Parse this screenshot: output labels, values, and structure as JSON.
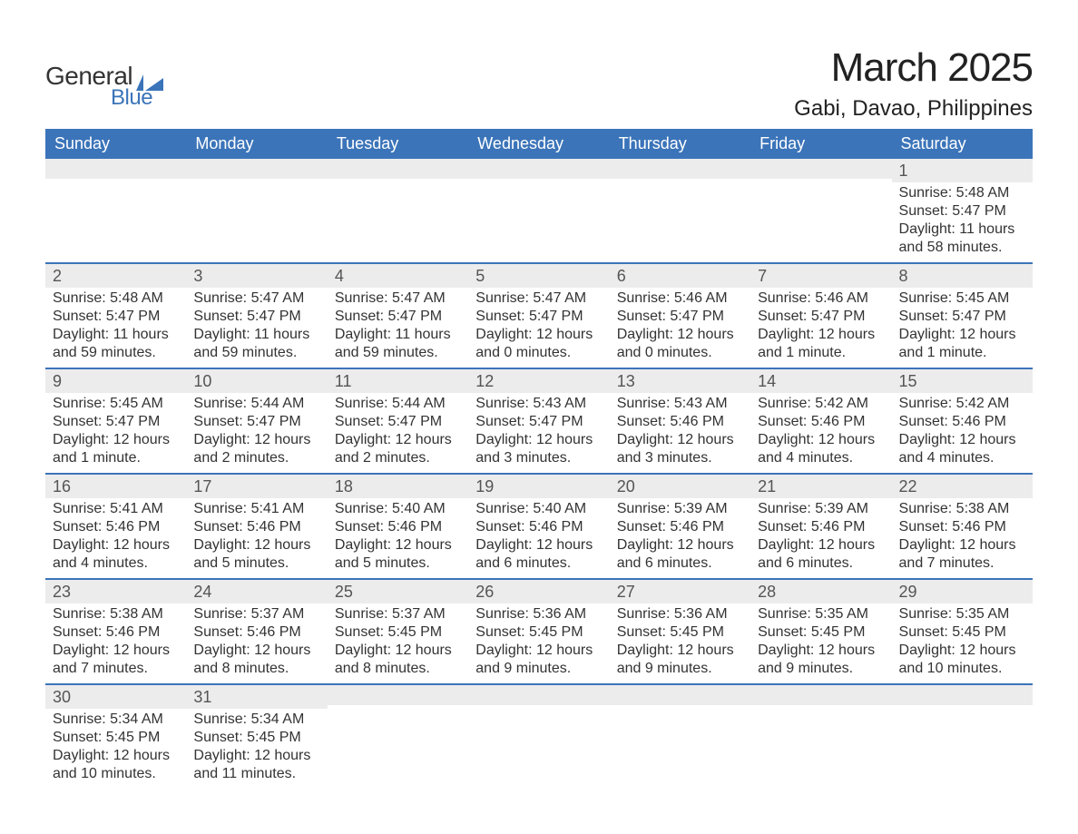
{
  "logo": {
    "text_general": "General",
    "text_blue": "Blue",
    "flag_color": "#3b74b9"
  },
  "title": {
    "month": "March 2025",
    "location": "Gabi, Davao, Philippines"
  },
  "colors": {
    "header_bg": "#3b74b9",
    "header_text": "#ffffff",
    "daynum_bg": "#ececec",
    "daynum_text": "#555555",
    "body_text": "#333333",
    "row_border": "#3b74b9",
    "page_bg": "#ffffff"
  },
  "typography": {
    "month_title_fontsize": 44,
    "location_fontsize": 24,
    "weekday_fontsize": 18,
    "daynum_fontsize": 18,
    "body_fontsize": 16,
    "font_family": "Arial"
  },
  "weekdays": [
    "Sunday",
    "Monday",
    "Tuesday",
    "Wednesday",
    "Thursday",
    "Friday",
    "Saturday"
  ],
  "weeks": [
    [
      null,
      null,
      null,
      null,
      null,
      null,
      {
        "day": "1",
        "sunrise": "Sunrise: 5:48 AM",
        "sunset": "Sunset: 5:47 PM",
        "daylight1": "Daylight: 11 hours",
        "daylight2": "and 58 minutes."
      }
    ],
    [
      {
        "day": "2",
        "sunrise": "Sunrise: 5:48 AM",
        "sunset": "Sunset: 5:47 PM",
        "daylight1": "Daylight: 11 hours",
        "daylight2": "and 59 minutes."
      },
      {
        "day": "3",
        "sunrise": "Sunrise: 5:47 AM",
        "sunset": "Sunset: 5:47 PM",
        "daylight1": "Daylight: 11 hours",
        "daylight2": "and 59 minutes."
      },
      {
        "day": "4",
        "sunrise": "Sunrise: 5:47 AM",
        "sunset": "Sunset: 5:47 PM",
        "daylight1": "Daylight: 11 hours",
        "daylight2": "and 59 minutes."
      },
      {
        "day": "5",
        "sunrise": "Sunrise: 5:47 AM",
        "sunset": "Sunset: 5:47 PM",
        "daylight1": "Daylight: 12 hours",
        "daylight2": "and 0 minutes."
      },
      {
        "day": "6",
        "sunrise": "Sunrise: 5:46 AM",
        "sunset": "Sunset: 5:47 PM",
        "daylight1": "Daylight: 12 hours",
        "daylight2": "and 0 minutes."
      },
      {
        "day": "7",
        "sunrise": "Sunrise: 5:46 AM",
        "sunset": "Sunset: 5:47 PM",
        "daylight1": "Daylight: 12 hours",
        "daylight2": "and 1 minute."
      },
      {
        "day": "8",
        "sunrise": "Sunrise: 5:45 AM",
        "sunset": "Sunset: 5:47 PM",
        "daylight1": "Daylight: 12 hours",
        "daylight2": "and 1 minute."
      }
    ],
    [
      {
        "day": "9",
        "sunrise": "Sunrise: 5:45 AM",
        "sunset": "Sunset: 5:47 PM",
        "daylight1": "Daylight: 12 hours",
        "daylight2": "and 1 minute."
      },
      {
        "day": "10",
        "sunrise": "Sunrise: 5:44 AM",
        "sunset": "Sunset: 5:47 PM",
        "daylight1": "Daylight: 12 hours",
        "daylight2": "and 2 minutes."
      },
      {
        "day": "11",
        "sunrise": "Sunrise: 5:44 AM",
        "sunset": "Sunset: 5:47 PM",
        "daylight1": "Daylight: 12 hours",
        "daylight2": "and 2 minutes."
      },
      {
        "day": "12",
        "sunrise": "Sunrise: 5:43 AM",
        "sunset": "Sunset: 5:47 PM",
        "daylight1": "Daylight: 12 hours",
        "daylight2": "and 3 minutes."
      },
      {
        "day": "13",
        "sunrise": "Sunrise: 5:43 AM",
        "sunset": "Sunset: 5:46 PM",
        "daylight1": "Daylight: 12 hours",
        "daylight2": "and 3 minutes."
      },
      {
        "day": "14",
        "sunrise": "Sunrise: 5:42 AM",
        "sunset": "Sunset: 5:46 PM",
        "daylight1": "Daylight: 12 hours",
        "daylight2": "and 4 minutes."
      },
      {
        "day": "15",
        "sunrise": "Sunrise: 5:42 AM",
        "sunset": "Sunset: 5:46 PM",
        "daylight1": "Daylight: 12 hours",
        "daylight2": "and 4 minutes."
      }
    ],
    [
      {
        "day": "16",
        "sunrise": "Sunrise: 5:41 AM",
        "sunset": "Sunset: 5:46 PM",
        "daylight1": "Daylight: 12 hours",
        "daylight2": "and 4 minutes."
      },
      {
        "day": "17",
        "sunrise": "Sunrise: 5:41 AM",
        "sunset": "Sunset: 5:46 PM",
        "daylight1": "Daylight: 12 hours",
        "daylight2": "and 5 minutes."
      },
      {
        "day": "18",
        "sunrise": "Sunrise: 5:40 AM",
        "sunset": "Sunset: 5:46 PM",
        "daylight1": "Daylight: 12 hours",
        "daylight2": "and 5 minutes."
      },
      {
        "day": "19",
        "sunrise": "Sunrise: 5:40 AM",
        "sunset": "Sunset: 5:46 PM",
        "daylight1": "Daylight: 12 hours",
        "daylight2": "and 6 minutes."
      },
      {
        "day": "20",
        "sunrise": "Sunrise: 5:39 AM",
        "sunset": "Sunset: 5:46 PM",
        "daylight1": "Daylight: 12 hours",
        "daylight2": "and 6 minutes."
      },
      {
        "day": "21",
        "sunrise": "Sunrise: 5:39 AM",
        "sunset": "Sunset: 5:46 PM",
        "daylight1": "Daylight: 12 hours",
        "daylight2": "and 6 minutes."
      },
      {
        "day": "22",
        "sunrise": "Sunrise: 5:38 AM",
        "sunset": "Sunset: 5:46 PM",
        "daylight1": "Daylight: 12 hours",
        "daylight2": "and 7 minutes."
      }
    ],
    [
      {
        "day": "23",
        "sunrise": "Sunrise: 5:38 AM",
        "sunset": "Sunset: 5:46 PM",
        "daylight1": "Daylight: 12 hours",
        "daylight2": "and 7 minutes."
      },
      {
        "day": "24",
        "sunrise": "Sunrise: 5:37 AM",
        "sunset": "Sunset: 5:46 PM",
        "daylight1": "Daylight: 12 hours",
        "daylight2": "and 8 minutes."
      },
      {
        "day": "25",
        "sunrise": "Sunrise: 5:37 AM",
        "sunset": "Sunset: 5:45 PM",
        "daylight1": "Daylight: 12 hours",
        "daylight2": "and 8 minutes."
      },
      {
        "day": "26",
        "sunrise": "Sunrise: 5:36 AM",
        "sunset": "Sunset: 5:45 PM",
        "daylight1": "Daylight: 12 hours",
        "daylight2": "and 9 minutes."
      },
      {
        "day": "27",
        "sunrise": "Sunrise: 5:36 AM",
        "sunset": "Sunset: 5:45 PM",
        "daylight1": "Daylight: 12 hours",
        "daylight2": "and 9 minutes."
      },
      {
        "day": "28",
        "sunrise": "Sunrise: 5:35 AM",
        "sunset": "Sunset: 5:45 PM",
        "daylight1": "Daylight: 12 hours",
        "daylight2": "and 9 minutes."
      },
      {
        "day": "29",
        "sunrise": "Sunrise: 5:35 AM",
        "sunset": "Sunset: 5:45 PM",
        "daylight1": "Daylight: 12 hours",
        "daylight2": "and 10 minutes."
      }
    ],
    [
      {
        "day": "30",
        "sunrise": "Sunrise: 5:34 AM",
        "sunset": "Sunset: 5:45 PM",
        "daylight1": "Daylight: 12 hours",
        "daylight2": "and 10 minutes."
      },
      {
        "day": "31",
        "sunrise": "Sunrise: 5:34 AM",
        "sunset": "Sunset: 5:45 PM",
        "daylight1": "Daylight: 12 hours",
        "daylight2": "and 11 minutes."
      },
      null,
      null,
      null,
      null,
      null
    ]
  ]
}
